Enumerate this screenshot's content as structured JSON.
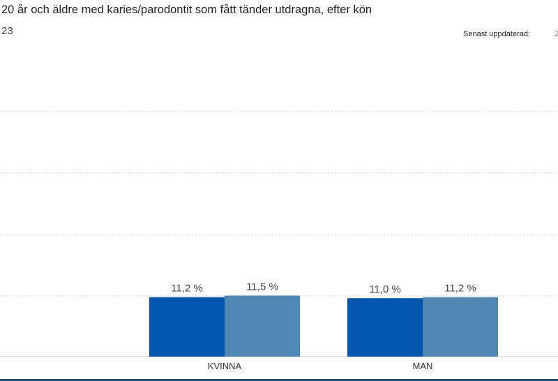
{
  "header": {
    "title": "20 år och äldre med karies/parodontit som fått tänder utdragna, efter kön",
    "subtitle": "23",
    "updated_label": "Senast uppdaterad:",
    "updated_value": "2"
  },
  "chart_data": {
    "type": "bar",
    "title": "20 år och äldre med karies/parodontit som fått tänder utdragna, efter kön",
    "categories": [
      "KVINNA",
      "MAN"
    ],
    "series": [
      {
        "color": "#0057ad",
        "values": [
          11.2,
          11.0
        ]
      },
      {
        "color": "#5088b5",
        "values": [
          11.5,
          11.2
        ]
      }
    ],
    "data_labels": [
      [
        "11,2 %",
        "11,0 %"
      ],
      [
        "11,5 %",
        "11,2 %"
      ]
    ],
    "ylim": [
      0,
      58
    ],
    "grid": true,
    "legend": "none"
  }
}
